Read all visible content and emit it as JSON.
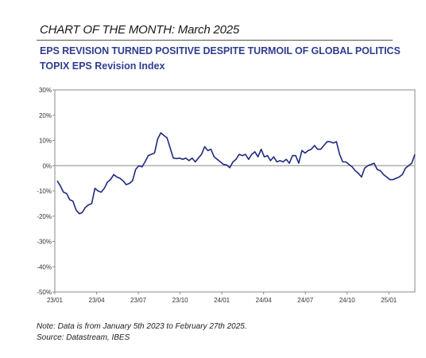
{
  "header": {
    "title": "CHART OF THE MONTH: March 2025"
  },
  "footer": {
    "note": "Note: Data is from January 5th 2023 to February 27th 2025.",
    "source": "Source: Datastream, IBES"
  },
  "colors": {
    "series": "#1f2a80",
    "title": "#2f3e8f",
    "axis": "#888888",
    "zero_line": "#b0b0b0"
  },
  "chart_data": {
    "type": "line",
    "title": "EPS REVISION TURNED POSITIVE DESPITE TURMOIL OF GLOBAL POLITICS",
    "subtitle": "TOPIX EPS Revision Index",
    "xlabel": "",
    "ylabel": "",
    "ylim": [
      -50,
      30
    ],
    "y_ticks": [
      30,
      20,
      10,
      0,
      -10,
      -20,
      -30,
      -40,
      -50
    ],
    "y_tick_labels": [
      "30%",
      "20%",
      "10%",
      "0%",
      "-10%",
      "-20%",
      "-30%",
      "-40%",
      "-50%"
    ],
    "x_ticks": [
      "23/01",
      "23/04",
      "23/07",
      "23/10",
      "24/01",
      "24/04",
      "24/07",
      "24/10",
      "25/01"
    ],
    "grid": false,
    "zero_line": true,
    "series": [
      {
        "values": [
          -6,
          -8,
          -10.5,
          -11,
          -13.5,
          -14,
          -17.5,
          -19,
          -18.5,
          -16.5,
          -15.5,
          -15,
          -9,
          -10,
          -10.5,
          -9,
          -6.5,
          -5.5,
          -3.5,
          -4.5,
          -5,
          -6,
          -7.5,
          -7,
          -6,
          -1.5,
          0,
          -0.5,
          1.5,
          4,
          4.5,
          5,
          10.5,
          13,
          12,
          11,
          7,
          3,
          2.8,
          3,
          2.5,
          3,
          2,
          3,
          1.5,
          3,
          4.5,
          7.5,
          6,
          6.5,
          3.5,
          2.5,
          1.5,
          0.5,
          0.3,
          -0.8,
          1.5,
          2.5,
          4.5,
          4,
          4.5,
          2.5,
          4.5,
          5.5,
          3.5,
          6.5,
          3.5,
          4,
          2,
          3.5,
          1.5,
          2,
          1.5,
          2.5,
          1,
          4,
          4,
          1,
          6,
          5,
          6,
          6.5,
          8,
          6.5,
          6.5,
          8,
          9.5,
          9.5,
          9,
          9.5,
          4.5,
          1.5,
          1.5,
          0.5,
          -0.5,
          -2,
          -3,
          -4.5,
          -1,
          0,
          0.5,
          1,
          -1.5,
          -2,
          -3.5,
          -4.5,
          -5.5,
          -5.5,
          -5,
          -4.5,
          -3.5,
          -1,
          0,
          1,
          4.5
        ]
      }
    ]
  }
}
